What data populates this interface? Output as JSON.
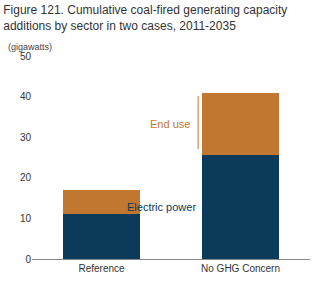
{
  "chart_data": {
    "type": "bar",
    "title": "Figure 121. Cumulative coal-fired generating capacity additions by sector in two cases, 2011-2035",
    "subtitle": "(gigawatts)",
    "categories": [
      "Reference",
      "No GHG Concern"
    ],
    "series": [
      {
        "name": "Electric power",
        "color": "#0b3a5b",
        "values": [
          11.2,
          25.5
        ]
      },
      {
        "name": "End use",
        "color": "#c27730",
        "values": [
          5.8,
          15.4
        ]
      }
    ],
    "stacked": true,
    "ylim": [
      0,
      50
    ],
    "yticks": [
      0,
      10,
      20,
      30,
      40,
      50
    ],
    "grid": false
  }
}
